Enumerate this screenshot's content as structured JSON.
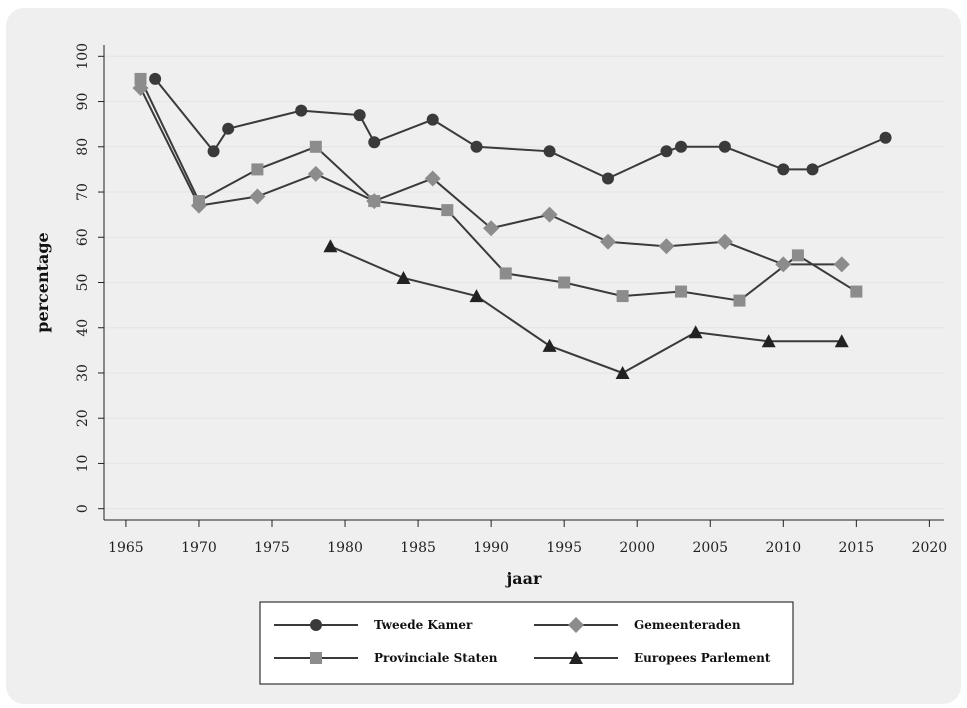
{
  "chart_data": {
    "type": "line",
    "title": "",
    "xlabel": "jaar",
    "ylabel": "percentage",
    "xlim": [
      1963.5,
      2021
    ],
    "ylim": [
      -2.5,
      102.5
    ],
    "xticks": [
      1965,
      1970,
      1975,
      1980,
      1985,
      1990,
      1995,
      2000,
      2005,
      2010,
      2015,
      2020
    ],
    "yticks": [
      0,
      10,
      20,
      30,
      40,
      50,
      60,
      70,
      80,
      90,
      100
    ],
    "grid": "horizontal",
    "legend_position": "bottom",
    "series": [
      {
        "name": "Tweede Kamer",
        "marker": "circle",
        "color": "#3a3a3a",
        "x": [
          1967,
          1971,
          1972,
          1977,
          1981,
          1982,
          1986,
          1989,
          1994,
          1998,
          2002,
          2003,
          2006,
          2010,
          2012,
          2017
        ],
        "y": [
          95,
          79,
          84,
          88,
          87,
          81,
          86,
          80,
          79,
          73,
          79,
          80,
          80,
          75,
          75,
          82
        ]
      },
      {
        "name": "Gemeenteraden",
        "marker": "diamond",
        "color": "#8c8c8c",
        "x": [
          1966,
          1970,
          1974,
          1978,
          1982,
          1986,
          1990,
          1994,
          1998,
          2002,
          2006,
          2010,
          2014
        ],
        "y": [
          93,
          67,
          69,
          74,
          68,
          73,
          62,
          65,
          59,
          58,
          59,
          54,
          54
        ]
      },
      {
        "name": "Provinciale Staten",
        "marker": "square",
        "color": "#8c8c8c",
        "x": [
          1966,
          1970,
          1974,
          1978,
          1982,
          1987,
          1991,
          1995,
          1999,
          2003,
          2007,
          2011,
          2015
        ],
        "y": [
          95,
          68,
          75,
          80,
          68,
          66,
          52,
          50,
          47,
          48,
          46,
          56,
          48
        ]
      },
      {
        "name": "Europees Parlement",
        "marker": "triangle",
        "color": "#222222",
        "x": [
          1979,
          1984,
          1989,
          1994,
          1999,
          2004,
          2009,
          2014
        ],
        "y": [
          58,
          51,
          47,
          36,
          30,
          39,
          37,
          37
        ]
      }
    ]
  }
}
